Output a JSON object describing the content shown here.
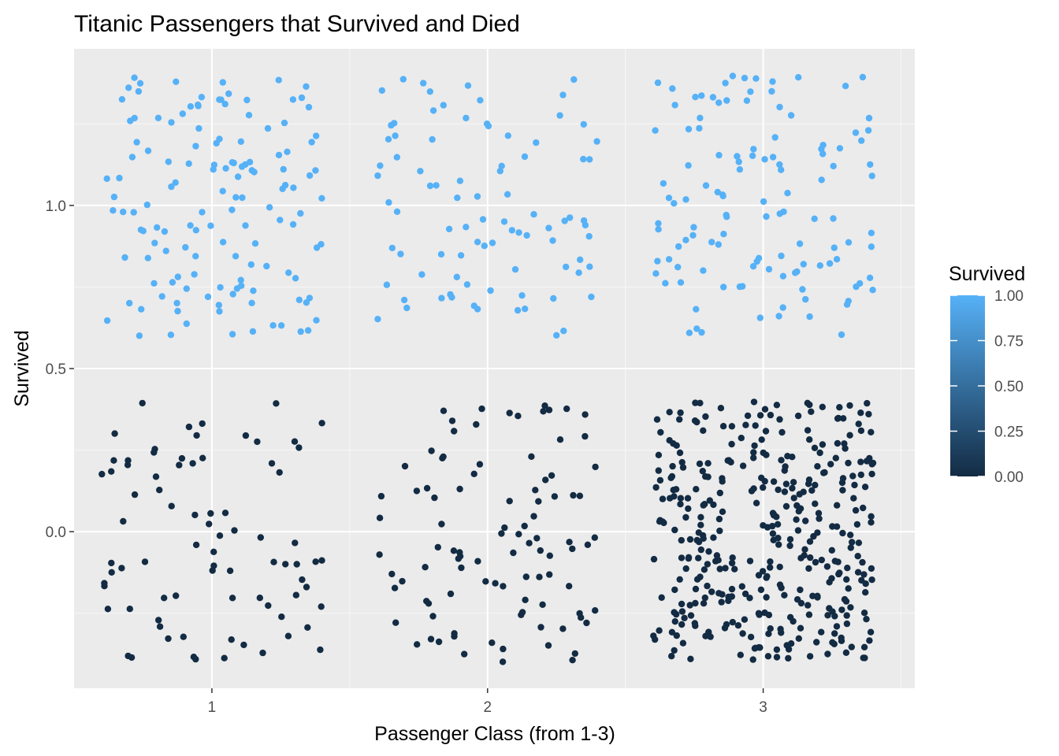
{
  "chart_data": {
    "type": "scatter",
    "title": "Titanic Passengers that Survived and Died",
    "xlabel": "Passenger Class (from 1-3)",
    "ylabel": "Survived",
    "jitter": true,
    "xlim": [
      0.5,
      3.55
    ],
    "ylim": [
      -0.48,
      1.48
    ],
    "x_ticks": [
      1,
      2,
      3
    ],
    "x_tick_labels": [
      "1",
      "2",
      "3"
    ],
    "y_ticks": [
      0.0,
      0.5,
      1.0
    ],
    "y_tick_labels": [
      "0.0",
      "0.5",
      "1.0"
    ],
    "grid": true,
    "legend": {
      "title": "Survived",
      "position": "right",
      "type": "colorbar",
      "range": [
        0,
        1
      ],
      "low_color": "#132B43",
      "high_color": "#56B1F7",
      "ticks": [
        0.0,
        0.25,
        0.5,
        0.75,
        1.0
      ],
      "tick_labels": [
        "0.00",
        "0.25",
        "0.50",
        "0.75",
        "1.00"
      ]
    },
    "groups": [
      {
        "pclass": 1,
        "survived": 1,
        "count": 136
      },
      {
        "pclass": 1,
        "survived": 0,
        "count": 80
      },
      {
        "pclass": 2,
        "survived": 1,
        "count": 87
      },
      {
        "pclass": 2,
        "survived": 0,
        "count": 97
      },
      {
        "pclass": 3,
        "survived": 1,
        "count": 119
      },
      {
        "pclass": 3,
        "survived": 0,
        "count": 372
      }
    ],
    "jitter_width": 0.4,
    "jitter_height": 0.4
  }
}
